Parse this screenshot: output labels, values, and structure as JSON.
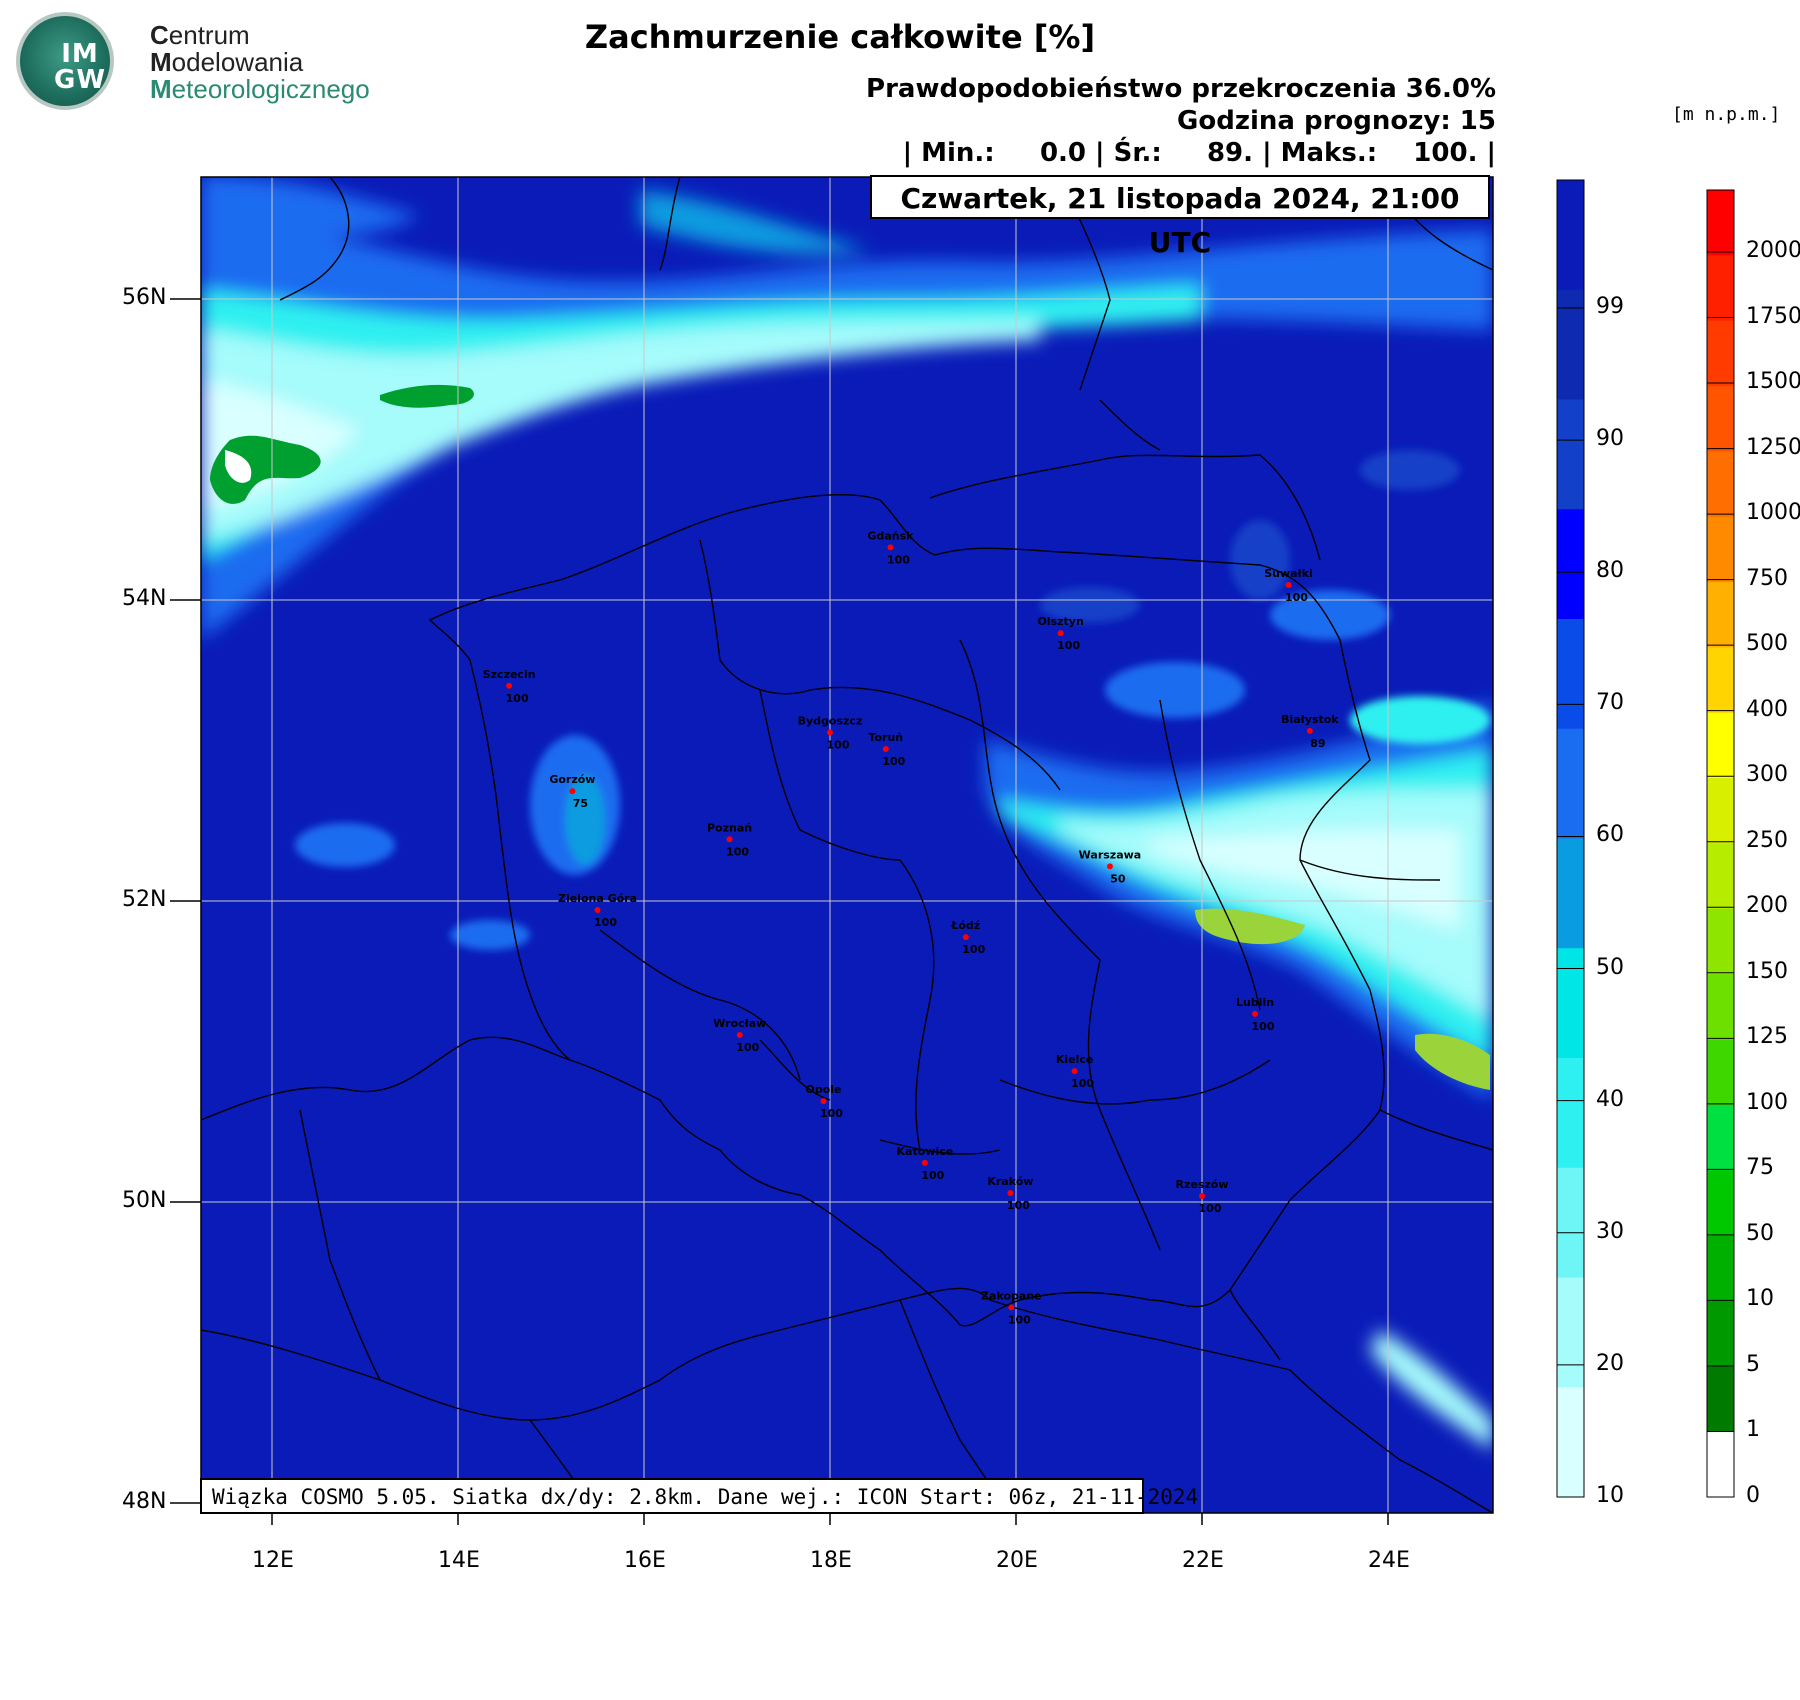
{
  "logo": {
    "abbrev_top": "IM",
    "abbrev_bottom": "GW",
    "name_line1_initial": "C",
    "name_line1_rest": "entrum",
    "name_line2_initial": "M",
    "name_line2_rest": "odelowania",
    "name_line3_initial": "M",
    "name_line3_rest": "eteorologicznego"
  },
  "header": {
    "title": "Zachmurzenie całkowite [%]",
    "probability": "Prawdopodobieństwo przekroczenia 36.0%",
    "forecast_hour": "Godzina prognozy: 15",
    "stats": "| Min.:     0.0 | Śr.:     89. | Maks.:    100. |",
    "date": "Czwartek, 21 listopada 2024, 21:00 UTC"
  },
  "footer": "Wiązka COSMO 5.05. Siatka dx/dy: 2.8km. Dane wej.: ICON Start: 06z, 21-11-2024",
  "map": {
    "lon_labels": [
      "12E",
      "14E",
      "16E",
      "18E",
      "20E",
      "22E",
      "24E"
    ],
    "lat_labels": [
      "56N",
      "54N",
      "52N",
      "50N",
      "48N"
    ],
    "cities": [
      {
        "name": "Gdańsk",
        "value": "100",
        "lon": 18.65,
        "lat": 54.35
      },
      {
        "name": "Suwałki",
        "value": "100",
        "lon": 22.93,
        "lat": 54.1
      },
      {
        "name": "Olsztyn",
        "value": "100",
        "lon": 20.48,
        "lat": 53.78
      },
      {
        "name": "Szczecin",
        "value": "100",
        "lon": 14.55,
        "lat": 53.43
      },
      {
        "name": "Bydgoszcz",
        "value": "100",
        "lon": 18.0,
        "lat": 53.12
      },
      {
        "name": "Toruń",
        "value": "100",
        "lon": 18.6,
        "lat": 53.01
      },
      {
        "name": "Białystok",
        "value": "89",
        "lon": 23.16,
        "lat": 53.13
      },
      {
        "name": "Gorzów",
        "value": "75",
        "lon": 15.23,
        "lat": 52.73
      },
      {
        "name": "Poznań",
        "value": "100",
        "lon": 16.92,
        "lat": 52.41
      },
      {
        "name": "Warszawa",
        "value": "50",
        "lon": 21.01,
        "lat": 52.23
      },
      {
        "name": "Zielona Góra",
        "value": "100",
        "lon": 15.5,
        "lat": 51.94
      },
      {
        "name": "Łódź",
        "value": "100",
        "lon": 19.46,
        "lat": 51.76
      },
      {
        "name": "Lublin",
        "value": "100",
        "lon": 22.57,
        "lat": 51.25
      },
      {
        "name": "Wrocław",
        "value": "100",
        "lon": 17.03,
        "lat": 51.11
      },
      {
        "name": "Kielce",
        "value": "100",
        "lon": 20.63,
        "lat": 50.87
      },
      {
        "name": "Opole",
        "value": "100",
        "lon": 17.93,
        "lat": 50.67
      },
      {
        "name": "Katowice",
        "value": "100",
        "lon": 19.02,
        "lat": 50.26
      },
      {
        "name": "Kraków",
        "value": "100",
        "lon": 19.94,
        "lat": 50.06
      },
      {
        "name": "Rzeszów",
        "value": "100",
        "lon": 22.0,
        "lat": 50.04
      },
      {
        "name": "Zakopane",
        "value": "100",
        "lon": 19.95,
        "lat": 49.3
      }
    ]
  },
  "colorbar_cloud": {
    "labels": [
      "99",
      "90",
      "80",
      "70",
      "60",
      "50",
      "40",
      "30",
      "20",
      "10"
    ],
    "colors": [
      "#0a1bb8",
      "#0d2ab0",
      "#1340c8",
      "#0000ff",
      "#0a4ce8",
      "#1a6cf0",
      "#0a9ce0",
      "#00e6e6",
      "#2ef0f0",
      "#6ef5f5",
      "#a6fbfb",
      "#d9ffff"
    ]
  },
  "colorbar_elev": {
    "unit": "[m n.p.m.]",
    "labels": [
      "2000",
      "1750",
      "1500",
      "1250",
      "1000",
      "750",
      "500",
      "400",
      "300",
      "250",
      "200",
      "150",
      "125",
      "100",
      "75",
      "50",
      "10",
      "5",
      "1",
      "0"
    ],
    "colors": [
      "#ff0000",
      "#ff2000",
      "#ff3b00",
      "#ff5400",
      "#ff6e00",
      "#ff8a00",
      "#ffb000",
      "#ffd400",
      "#ffff00",
      "#d8f000",
      "#b6ec00",
      "#8ee600",
      "#6ee000",
      "#3ed800",
      "#00e040",
      "#00c800",
      "#00b000",
      "#009a00",
      "#007a00",
      "#ffffff"
    ]
  },
  "colors": {
    "sea_cloud_blue": "#0a1bb8",
    "clear_cyan": "#c8ffff",
    "city_dot": "#ff0000"
  }
}
